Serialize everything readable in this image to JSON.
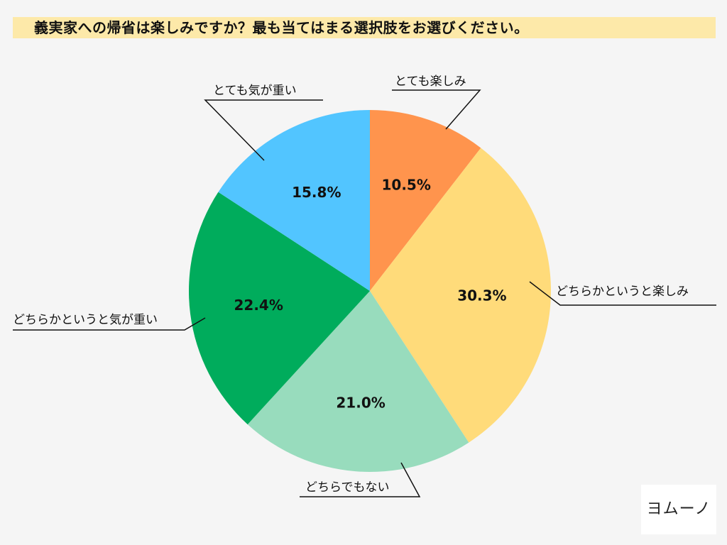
{
  "title": "義実家への帰省は楽しみですか？最も当てはまる選択肢をお選びください。",
  "logo": {
    "text": "ヨムーノ"
  },
  "chart_data": {
    "type": "pie",
    "title": "義実家への帰省は楽しみですか？最も当てはまる選択肢をお選びください。",
    "start_angle_deg": 0,
    "direction": "clockwise",
    "slices": [
      {
        "label": "とても楽しみ",
        "value": 10.5,
        "value_label": "10.5%",
        "color": "#ff944d"
      },
      {
        "label": "どちらかというと楽しみ",
        "value": 30.3,
        "value_label": "30.3%",
        "color": "#ffdb7a"
      },
      {
        "label": "どちらでもない",
        "value": 21.0,
        "value_label": "21.0%",
        "color": "#98dcbd"
      },
      {
        "label": "どちらかというと気が重い",
        "value": 22.4,
        "value_label": "22.4%",
        "color": "#00ac5c"
      },
      {
        "label": "とても気が重い",
        "value": 15.8,
        "value_label": "15.8%",
        "color": "#52c5ff"
      }
    ]
  }
}
